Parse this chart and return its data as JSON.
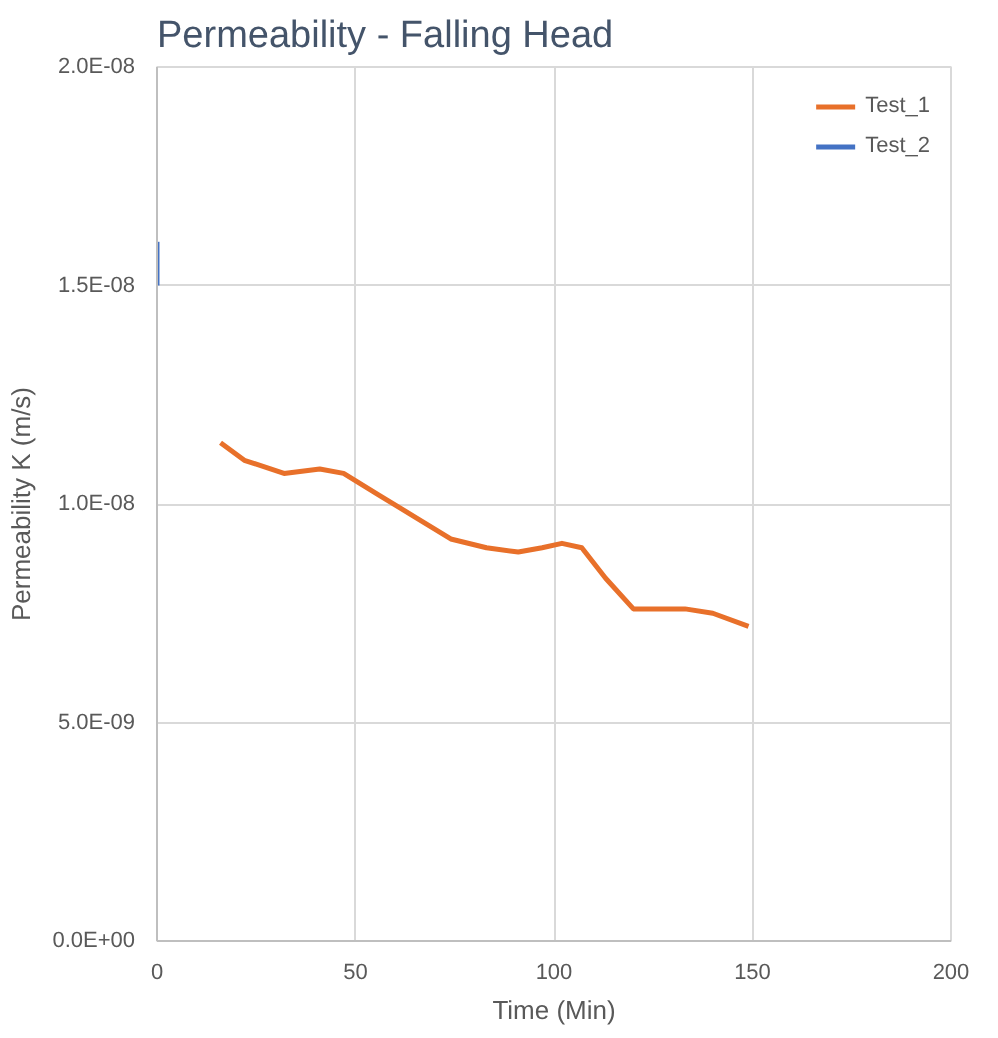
{
  "chart_data": {
    "type": "line",
    "title": "Permeability - Falling Head",
    "xlabel": "Time (Min)",
    "ylabel": "Permeability K (m/s)",
    "xlim": [
      0,
      200
    ],
    "xticks": [
      0,
      50,
      100,
      150,
      200
    ],
    "ylim": [
      0,
      2e-08
    ],
    "yticks": [
      {
        "value": 0,
        "label": "0.0E+00"
      },
      {
        "value": 5e-09,
        "label": "5.0E-09"
      },
      {
        "value": 1e-08,
        "label": "1.0E-08"
      },
      {
        "value": 1.5e-08,
        "label": "1.5E-08"
      },
      {
        "value": 2e-08,
        "label": "2.0E-08"
      }
    ],
    "grid": true,
    "legend": "top right",
    "marker": "none",
    "line_style": "solid",
    "series": [
      {
        "name": "Test_1",
        "color": "#e8702a",
        "x": [
          16,
          22,
          32,
          41,
          47,
          56,
          65,
          74,
          83,
          91,
          97,
          102,
          107,
          113,
          120,
          126,
          133,
          140,
          149
        ],
        "values": [
          1.14e-08,
          1.1e-08,
          1.07e-08,
          1.08e-08,
          1.07e-08,
          1.02e-08,
          9.7e-09,
          9.2e-09,
          9e-09,
          8.9e-09,
          9e-09,
          9.1e-09,
          9e-09,
          8.3e-09,
          7.6e-09,
          7.6e-09,
          7.6e-09,
          7.5e-09,
          7.2e-09
        ]
      },
      {
        "name": "Test_2",
        "color": "#4472c4",
        "x": [
          0,
          0
        ],
        "values": [
          1.6e-08,
          1.5e-08
        ]
      }
    ]
  }
}
